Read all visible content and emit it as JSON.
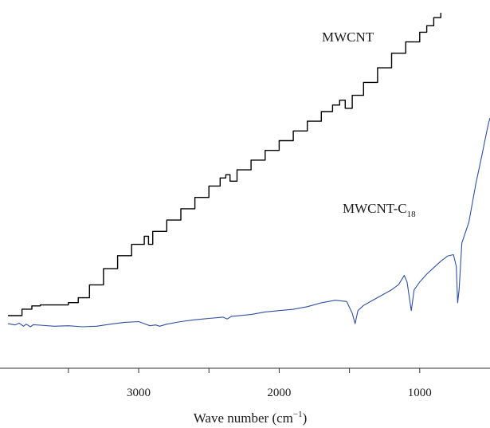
{
  "chart_data": {
    "type": "line",
    "xlabel": "Wave number (cm",
    "xlabel_sup": "−1",
    "xlabel_close": ")",
    "x_reversed": true,
    "xlim": [
      3930,
      500
    ],
    "ylim": [
      0,
      1
    ],
    "y_axis_visible": false,
    "grid": false,
    "x_ticks_labeled": [
      3000,
      2000,
      1000
    ],
    "x_ticks_minor": [
      3500,
      2500,
      1500
    ],
    "x_tick_labels": [
      "3000",
      "2000",
      "1000"
    ],
    "series": [
      {
        "name": "MWCNT",
        "name_sub": "",
        "color": "#000000",
        "step": true,
        "points": [
          [
            3930,
            0.065
          ],
          [
            3830,
            0.085
          ],
          [
            3760,
            0.095
          ],
          [
            3700,
            0.098
          ],
          [
            3500,
            0.105
          ],
          [
            3430,
            0.12
          ],
          [
            3350,
            0.16
          ],
          [
            3250,
            0.21
          ],
          [
            3150,
            0.25
          ],
          [
            3050,
            0.285
          ],
          [
            2960,
            0.31
          ],
          [
            2930,
            0.285
          ],
          [
            2900,
            0.325
          ],
          [
            2800,
            0.36
          ],
          [
            2700,
            0.395
          ],
          [
            2600,
            0.43
          ],
          [
            2500,
            0.465
          ],
          [
            2420,
            0.49
          ],
          [
            2380,
            0.5
          ],
          [
            2350,
            0.48
          ],
          [
            2300,
            0.515
          ],
          [
            2200,
            0.545
          ],
          [
            2100,
            0.575
          ],
          [
            2000,
            0.605
          ],
          [
            1900,
            0.635
          ],
          [
            1800,
            0.665
          ],
          [
            1700,
            0.695
          ],
          [
            1620,
            0.715
          ],
          [
            1570,
            0.73
          ],
          [
            1530,
            0.705
          ],
          [
            1480,
            0.745
          ],
          [
            1400,
            0.785
          ],
          [
            1300,
            0.83
          ],
          [
            1200,
            0.875
          ],
          [
            1100,
            0.91
          ],
          [
            1000,
            0.94
          ],
          [
            950,
            0.96
          ],
          [
            900,
            0.985
          ],
          [
            850,
            1.0
          ]
        ]
      },
      {
        "name": "MWCNT-C",
        "name_sub": "18",
        "color": "#2f4fa0",
        "step": false,
        "points": [
          [
            3930,
            0.01
          ],
          [
            3880,
            0.005
          ],
          [
            3850,
            0.012
          ],
          [
            3820,
            0.0
          ],
          [
            3800,
            0.008
          ],
          [
            3770,
            -0.002
          ],
          [
            3750,
            0.006
          ],
          [
            3700,
            0.004
          ],
          [
            3600,
            0.0
          ],
          [
            3500,
            0.002
          ],
          [
            3400,
            -0.002
          ],
          [
            3300,
            0.0
          ],
          [
            3200,
            0.008
          ],
          [
            3100,
            0.015
          ],
          [
            3000,
            0.018
          ],
          [
            2960,
            0.01
          ],
          [
            2920,
            0.002
          ],
          [
            2880,
            0.005
          ],
          [
            2850,
            0.0
          ],
          [
            2800,
            0.008
          ],
          [
            2700,
            0.018
          ],
          [
            2600,
            0.025
          ],
          [
            2500,
            0.03
          ],
          [
            2400,
            0.035
          ],
          [
            2370,
            0.028
          ],
          [
            2340,
            0.038
          ],
          [
            2300,
            0.04
          ],
          [
            2200,
            0.045
          ],
          [
            2100,
            0.055
          ],
          [
            2000,
            0.06
          ],
          [
            1900,
            0.065
          ],
          [
            1800,
            0.075
          ],
          [
            1700,
            0.09
          ],
          [
            1600,
            0.1
          ],
          [
            1520,
            0.095
          ],
          [
            1480,
            0.05
          ],
          [
            1460,
            0.01
          ],
          [
            1440,
            0.06
          ],
          [
            1400,
            0.08
          ],
          [
            1300,
            0.11
          ],
          [
            1200,
            0.14
          ],
          [
            1150,
            0.16
          ],
          [
            1110,
            0.195
          ],
          [
            1090,
            0.17
          ],
          [
            1060,
            0.06
          ],
          [
            1040,
            0.14
          ],
          [
            1000,
            0.17
          ],
          [
            950,
            0.2
          ],
          [
            900,
            0.225
          ],
          [
            850,
            0.25
          ],
          [
            800,
            0.27
          ],
          [
            760,
            0.275
          ],
          [
            740,
            0.23
          ],
          [
            730,
            0.09
          ],
          [
            720,
            0.14
          ],
          [
            700,
            0.32
          ],
          [
            650,
            0.4
          ],
          [
            600,
            0.55
          ],
          [
            560,
            0.65
          ],
          [
            530,
            0.73
          ],
          [
            510,
            0.78
          ],
          [
            500,
            0.8
          ]
        ]
      }
    ]
  }
}
